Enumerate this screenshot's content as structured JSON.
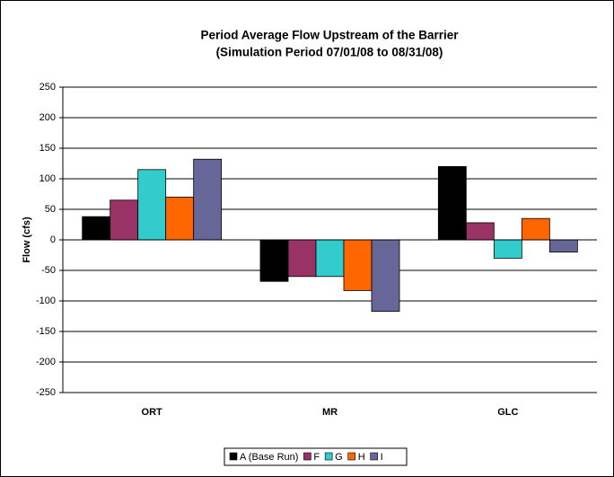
{
  "chart_data": {
    "type": "bar",
    "title": "Period Average Flow Upstream of the Barrier",
    "subtitle": "(Simulation Period 07/01/08 to 08/31/08)",
    "y_label": "Flow (cfs)",
    "categories": [
      "ORT",
      "MR",
      "GLC"
    ],
    "series": [
      {
        "name": "A (Base Run)",
        "color": "#000000",
        "values": [
          38,
          -68,
          120
        ]
      },
      {
        "name": "F",
        "color": "#993366",
        "values": [
          65,
          -60,
          28
        ]
      },
      {
        "name": "G",
        "color": "#33cccc",
        "values": [
          115,
          -60,
          -30
        ]
      },
      {
        "name": "H",
        "color": "#ff6600",
        "values": [
          70,
          -83,
          35
        ]
      },
      {
        "name": "I",
        "color": "#666699",
        "values": [
          132,
          -117,
          -20
        ]
      }
    ],
    "ylim": [
      -250,
      250
    ],
    "yticks": [
      -250,
      -200,
      -150,
      -100,
      -50,
      0,
      50,
      100,
      150,
      200,
      250
    ],
    "grid": true,
    "legend": "bottom"
  }
}
